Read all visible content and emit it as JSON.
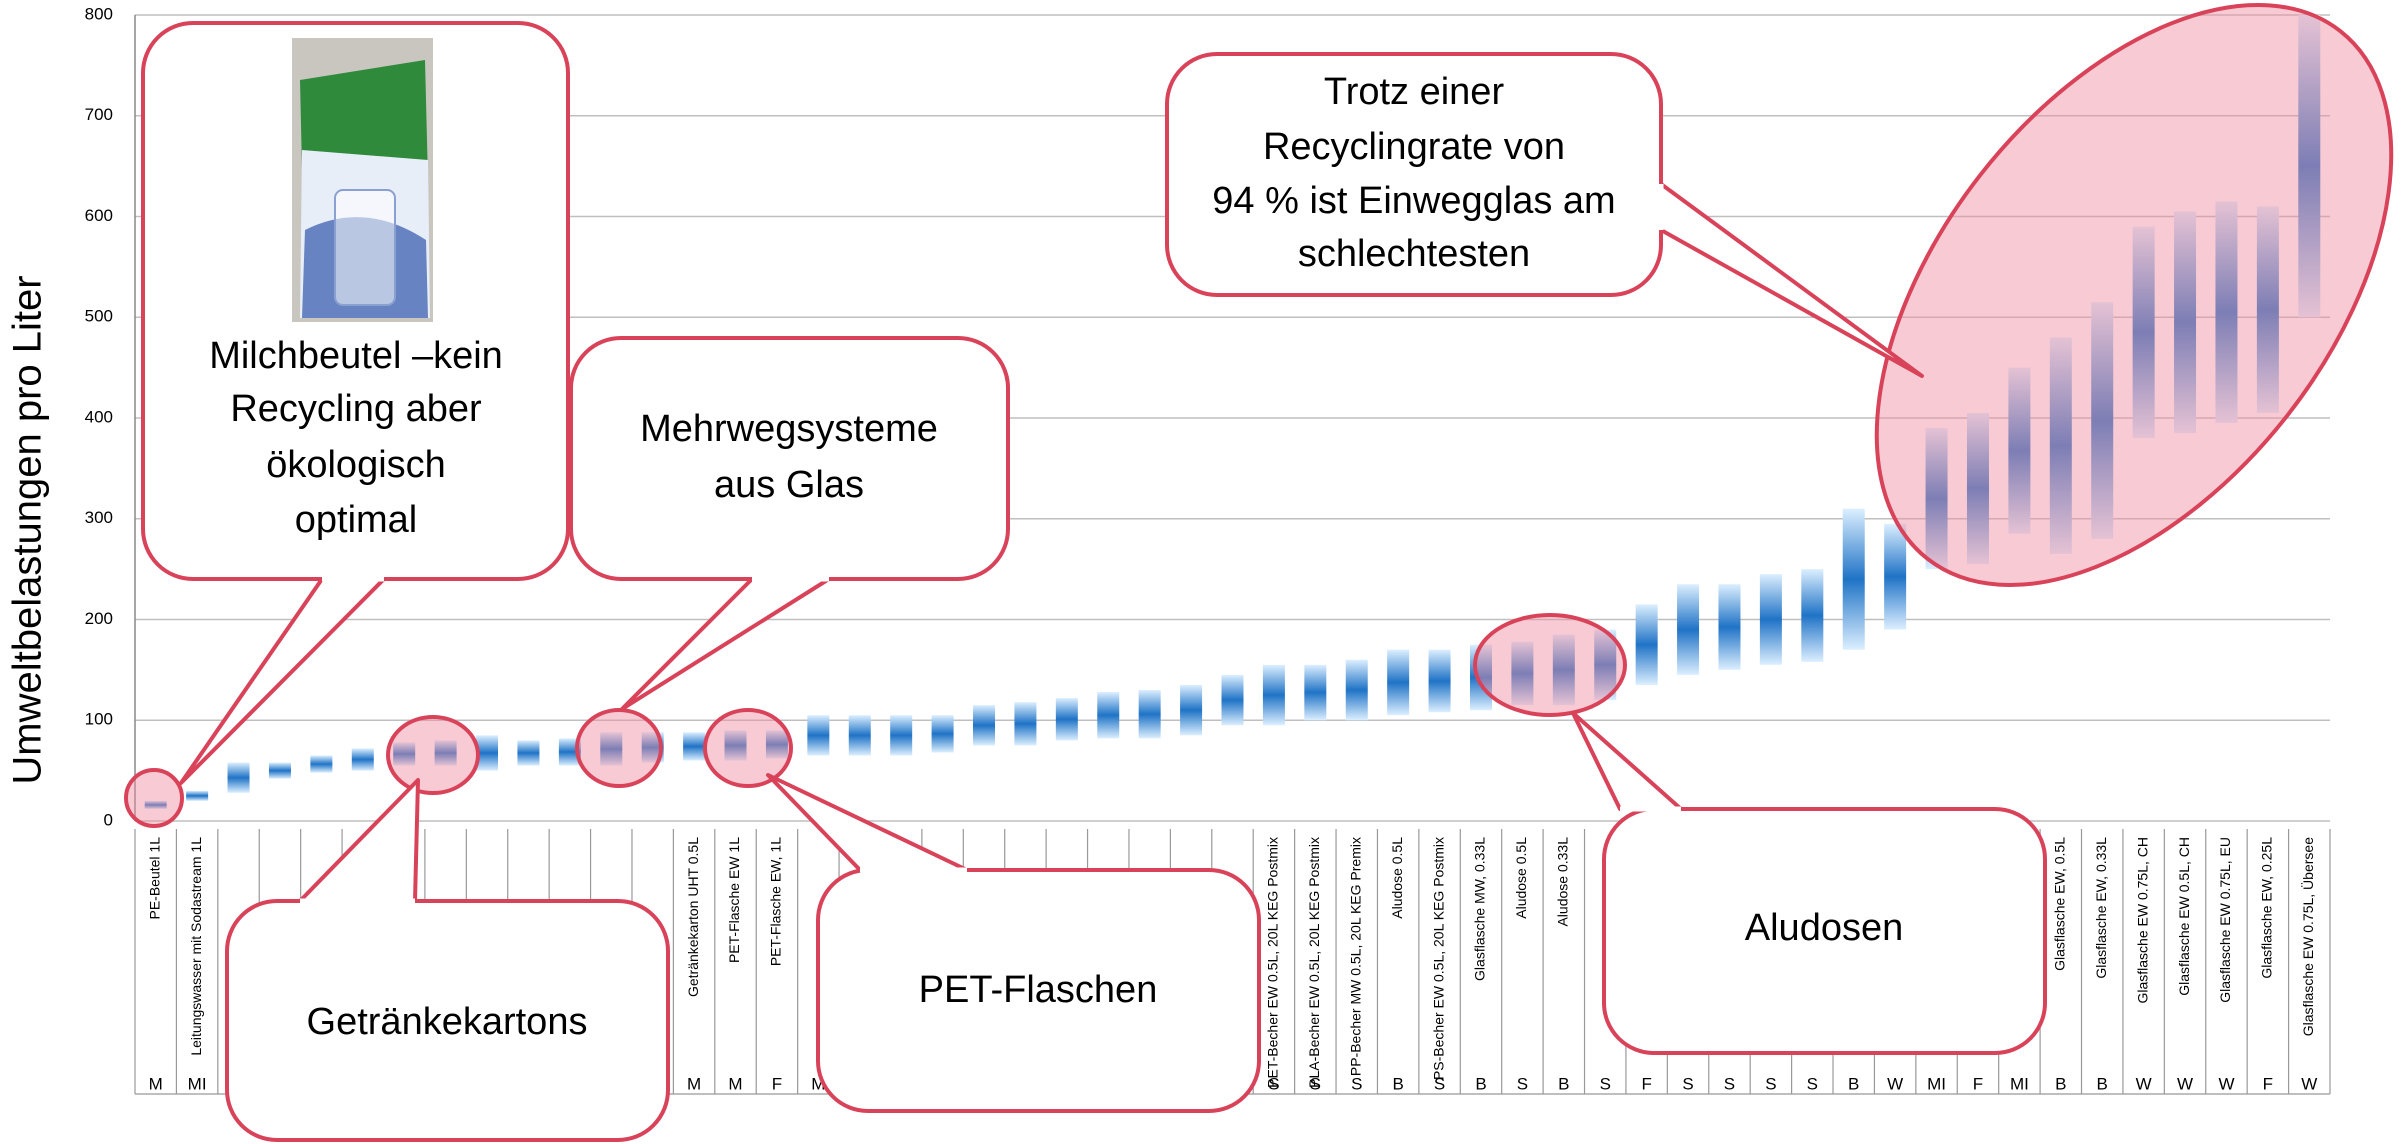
{
  "chart_data": {
    "type": "range",
    "ylabel": "Umweltbelastungen pro Liter",
    "categories": [
      "PE-Beutel 1L",
      "Leitungswasser mit Sodastream 1L",
      null,
      null,
      null,
      null,
      null,
      null,
      null,
      null,
      null,
      null,
      null,
      "Getränkekarton UHT 0.5L",
      "PET-Flasche EW 1L",
      "PET-Flasche EW, 1L",
      null,
      null,
      null,
      null,
      null,
      null,
      null,
      null,
      null,
      null,
      null,
      "PET-Becher EW 0.5L, 20L KEG Postmix",
      "PLA-Becher EW 0.5L, 20L KEG Postmix",
      "PP-Becher MW 0.5L, 20L KEG Premix",
      "Aludose 0.5L",
      "PS-Becher EW 0.5L, 20L KEG Postmix",
      "Glasflasche MW, 0.33L",
      "Aludose 0.5L",
      "Aludose 0.33L",
      null,
      null,
      null,
      null,
      null,
      null,
      null,
      null,
      null,
      null,
      null,
      "Glasflasche EW, 0.5L",
      "Glasflasche EW, 0.33L",
      "Glasflasche EW 0.75L, CH",
      "Glasflasche EW 0.5L, CH",
      "Glasflasche EW 0.75L, EU",
      "Glasflasche EW, 0.25L",
      "Glasflasche EW 0.75L, Übersee"
    ],
    "groups": [
      "M",
      "MI",
      null,
      null,
      null,
      null,
      null,
      null,
      null,
      null,
      null,
      null,
      null,
      "M",
      "M",
      "F",
      "M",
      null,
      null,
      null,
      null,
      null,
      null,
      null,
      null,
      null,
      null,
      "S",
      "S",
      "S",
      "B",
      "S",
      "B",
      "S",
      "B",
      "S",
      "F",
      "S",
      "S",
      "S",
      "S",
      "B",
      "W",
      "MI",
      "F",
      "MI",
      "B",
      "B",
      "W",
      "W",
      "W",
      "F",
      "W"
    ],
    "lows": [
      12,
      20,
      28,
      42,
      48,
      50,
      55,
      55,
      50,
      55,
      55,
      55,
      58,
      60,
      60,
      62,
      65,
      65,
      65,
      68,
      75,
      75,
      80,
      82,
      82,
      85,
      95,
      95,
      100,
      100,
      105,
      108,
      110,
      115,
      115,
      120,
      135,
      145,
      150,
      155,
      158,
      170,
      190,
      250,
      255,
      285,
      265,
      280,
      380,
      385,
      395,
      405,
      500
    ],
    "highs": [
      20,
      30,
      58,
      58,
      65,
      72,
      78,
      80,
      85,
      80,
      82,
      88,
      88,
      88,
      90,
      90,
      105,
      105,
      105,
      105,
      115,
      118,
      122,
      128,
      130,
      135,
      145,
      155,
      155,
      160,
      170,
      170,
      175,
      178,
      185,
      190,
      215,
      235,
      235,
      245,
      250,
      310,
      295,
      390,
      405,
      450,
      480,
      515,
      590,
      605,
      615,
      610,
      800
    ],
    "color": "#1f73c6",
    "ylim": [
      0,
      800
    ],
    "yticks": [
      0,
      100,
      200,
      300,
      400,
      500,
      600,
      700,
      800
    ],
    "grid": true
  },
  "callouts": [
    {
      "lines": [
        "Milchbeutel –kein",
        "Recycling aber",
        "ökologisch",
        "optimal"
      ]
    },
    {
      "lines": [
        "Mehrwegsysteme",
        "aus Glas"
      ]
    },
    {
      "lines": [
        "Getränkekartons"
      ]
    },
    {
      "lines": [
        "PET-Flaschen"
      ]
    },
    {
      "lines": [
        "Aludosen"
      ]
    },
    {
      "lines": [
        "Trotz einer",
        "Recyclingrate von",
        "94 % ist Einwegglas am",
        "schlechtesten"
      ]
    }
  ]
}
